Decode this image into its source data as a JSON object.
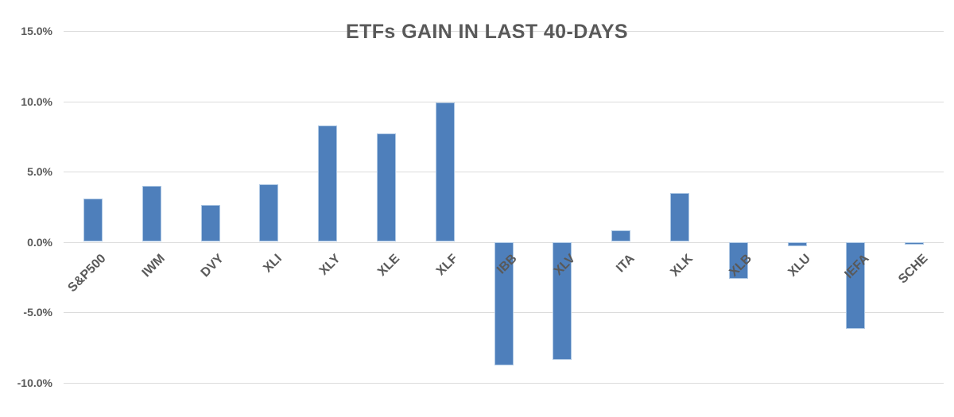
{
  "chart_data": {
    "type": "bar",
    "title": "ETFs GAIN IN LAST 40-DAYS",
    "categories": [
      "S&P500",
      "IWM",
      "DVY",
      "XLI",
      "XLY",
      "XLE",
      "XLF",
      "IBB",
      "XLV",
      "ITA",
      "XLK",
      "XLB",
      "XLU",
      "IEFA",
      "SCHE"
    ],
    "values": [
      3.1,
      4.0,
      2.6,
      4.1,
      8.3,
      7.7,
      9.9,
      -8.8,
      -8.4,
      0.8,
      3.5,
      -2.6,
      -0.3,
      -6.2,
      -0.2
    ],
    "unit": "%",
    "xlabel": "",
    "ylabel": "",
    "ylim": [
      -10,
      15
    ],
    "ytick_values": [
      15,
      10,
      5,
      0,
      -5,
      -10
    ],
    "ytick_labels": [
      "15.0%",
      "10.0%",
      "5.0%",
      "0.0%",
      "-5.0%",
      "-10.0%"
    ],
    "grid": true,
    "legend": false,
    "colors": {
      "bar_fill": "#4e7fbb",
      "bar_border": "#aec8e4",
      "gridline": "#dcdcdc",
      "text": "#595959",
      "background": "#ffffff"
    }
  }
}
